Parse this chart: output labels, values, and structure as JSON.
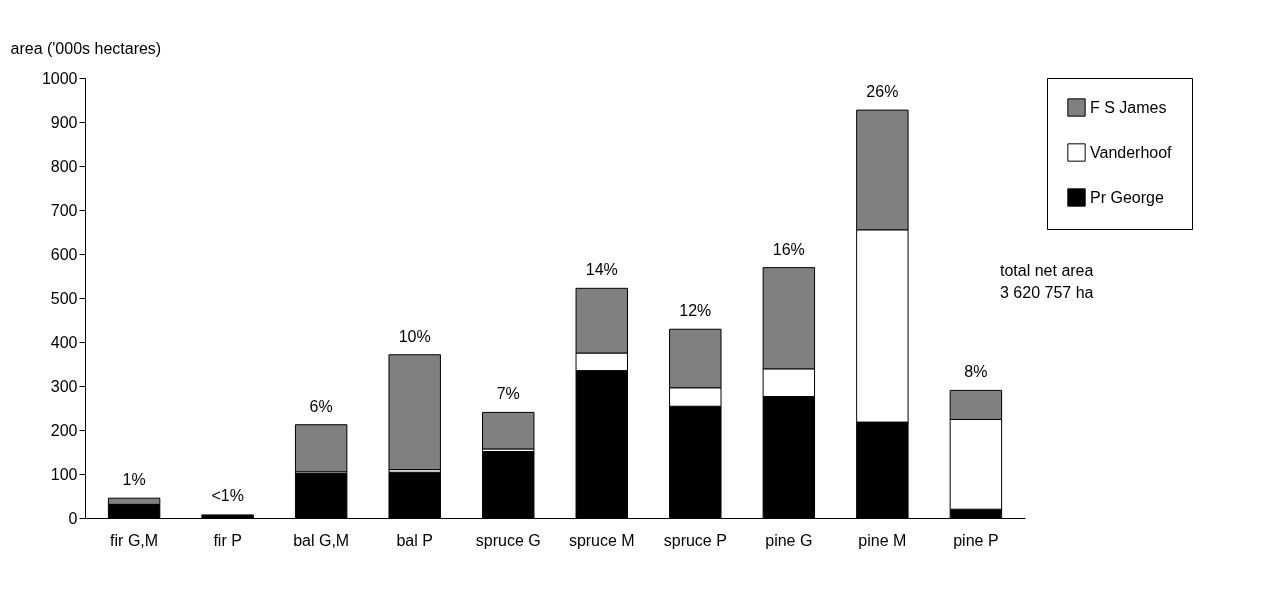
{
  "chart_data": {
    "type": "bar",
    "stacked": true,
    "ylabel": "area ('000s hectares)",
    "categories": [
      "fir G,M",
      "fir P",
      "bal G,M",
      "bal P",
      "spruce G",
      "spruce M",
      "spruce P",
      "pine G",
      "pine M",
      "pine P"
    ],
    "series": [
      {
        "name": "Pr George",
        "color": "#000000",
        "values": [
          31,
          7,
          101,
          104,
          151,
          335,
          254,
          276,
          218,
          20
        ]
      },
      {
        "name": "Vanderhoof",
        "color": "#ffffff",
        "values": [
          null,
          null,
          4,
          6,
          6,
          40,
          42,
          63,
          437,
          204
        ]
      },
      {
        "name": "F S James",
        "color": "#808080",
        "values": [
          14,
          null,
          107,
          261,
          83,
          147,
          133,
          230,
          272,
          66
        ]
      }
    ],
    "ylim": [
      0,
      1000
    ],
    "yticks": [
      0,
      100,
      200,
      300,
      400,
      500,
      600,
      700,
      800,
      900,
      1000
    ],
    "grid": false,
    "legend": "top right",
    "annotations": [
      {
        "text": "1%",
        "x": "fir G,M",
        "y": 45
      },
      {
        "text": "<1%",
        "x": "fir P",
        "y": 8
      },
      {
        "text": "6%",
        "x": "bal G,M",
        "y": 212
      },
      {
        "text": "10%",
        "x": "bal P",
        "y": 371
      },
      {
        "text": "7%",
        "x": "spruce G",
        "y": 240
      },
      {
        "text": "14%",
        "x": "spruce M",
        "y": 522
      },
      {
        "text": "12%",
        "x": "spruce P",
        "y": 429
      },
      {
        "text": "16%",
        "x": "pine G",
        "y": 569
      },
      {
        "text": "26%",
        "x": "pine M",
        "y": 927
      },
      {
        "text": "8%",
        "x": "pine P",
        "y": 290
      },
      "total net area\n3 620 757 ha"
    ]
  }
}
